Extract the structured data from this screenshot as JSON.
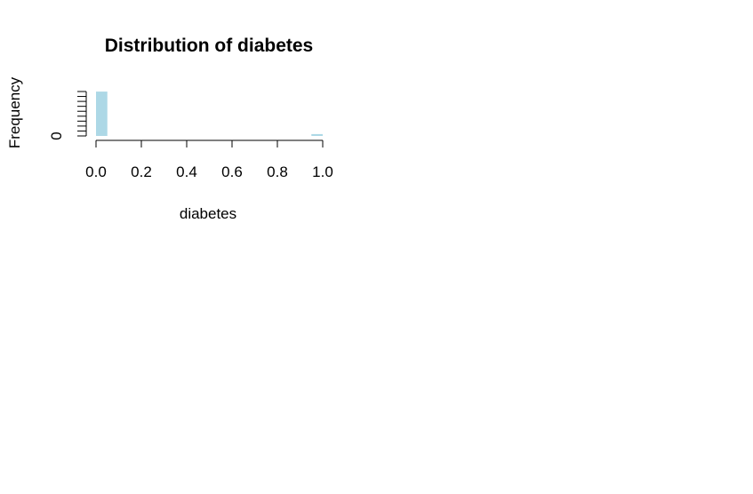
{
  "chart_data": {
    "type": "bar",
    "title": "Distribution of diabetes",
    "xlabel": "diabetes",
    "ylabel": "Frequency",
    "xlim": [
      0,
      1
    ],
    "x_ticks": [
      "0.0",
      "0.2",
      "0.4",
      "0.6",
      "0.8",
      "1.0"
    ],
    "y_ticks": [
      "0"
    ],
    "bar_color": "#add8e6",
    "bins": [
      {
        "x0": 0.0,
        "x1": 0.05,
        "count": 0.96
      },
      {
        "x0": 0.95,
        "x1": 1.0,
        "count": 0.04
      }
    ],
    "y_max": 1.0
  }
}
